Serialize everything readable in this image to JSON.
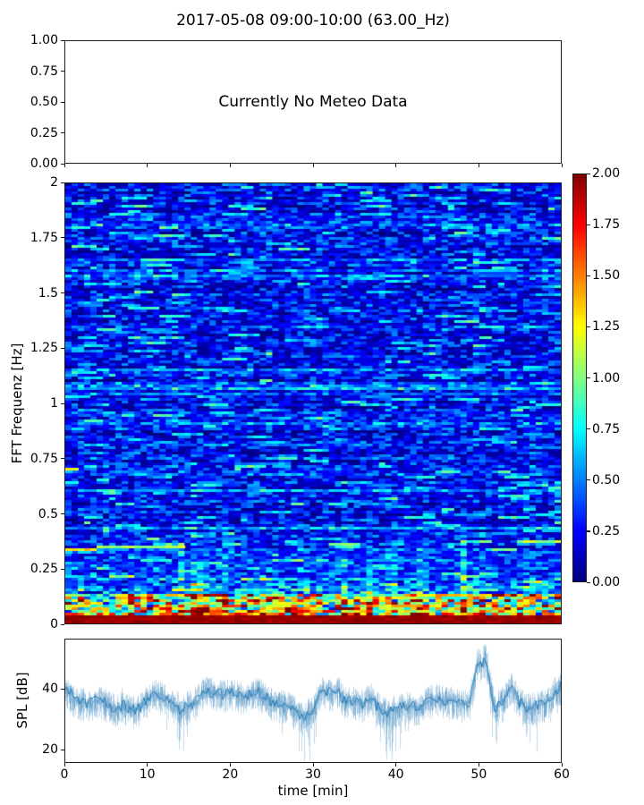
{
  "figure": {
    "title": "2017-05-08 09:00-10:00 (63.00_Hz)",
    "background": "#ffffff",
    "spine_color": "#1a1a1a"
  },
  "chart_data": [
    {
      "type": "empty",
      "panel": "meteo",
      "annotation": "Currently No Meteo Data",
      "ylim": [
        0,
        1
      ],
      "yticks": {
        "values": [
          1.0,
          0.75,
          0.5,
          0.25,
          0.0
        ],
        "labels": [
          "1.00",
          "0.75",
          "0.50",
          "0.25",
          "0.00"
        ]
      },
      "xlim": [
        0,
        60
      ],
      "xticks": {
        "values": [
          0,
          10,
          20,
          30,
          40,
          50,
          60
        ],
        "labels": []
      },
      "grid": false
    },
    {
      "type": "heatmap",
      "panel": "fft-spectrogram",
      "ylabel": "FFT Frequenz [Hz]",
      "xlim": [
        0,
        60
      ],
      "ylim": [
        0,
        2
      ],
      "yticks": {
        "values": [
          2,
          1.75,
          1.5,
          1.25,
          1,
          0.75,
          0.5,
          0.25,
          0
        ],
        "labels": [
          "2",
          "1.75",
          "1.5",
          "1.25",
          "1",
          "0.75",
          "0.5",
          "0.25",
          "0"
        ]
      },
      "colormap": "jet",
      "clim": [
        0,
        2
      ],
      "colorbar": {
        "ticks": {
          "values": [
            2.0,
            1.75,
            1.5,
            1.25,
            1.0,
            0.75,
            0.5,
            0.25,
            0.0
          ],
          "labels": [
            "2.00",
            "1.75",
            "1.50",
            "1.25",
            "1.00",
            "0.75",
            "0.50",
            "0.25",
            "0.00"
          ]
        }
      },
      "synthesis": {
        "seed": 42,
        "rows": 164,
        "cols": 79,
        "base_level": 0.18,
        "streak_probability": 0.055,
        "row_glow_probability": 0.12,
        "column_hot_probability": 0.15,
        "low_freq_hot_band_hz": 0.5,
        "very_hot_band_hz": 0.13,
        "bottom_line_hz": 0.03,
        "bottom_line_level": 1.9,
        "hot_streaks": [
          {
            "t0": 0,
            "t1": 4,
            "f": 0.33,
            "level": 1.25
          },
          {
            "t0": 4,
            "t1": 14,
            "f": 0.345,
            "level": 1.05
          },
          {
            "t0": 0,
            "t1": 1.5,
            "f": 0.7,
            "level": 1.2
          },
          {
            "t0": 0,
            "t1": 2,
            "f": 1.03,
            "level": 0.75
          },
          {
            "t0": 0,
            "t1": 1,
            "f": 0.64,
            "level": 0.85
          },
          {
            "t0": 19,
            "t1": 22,
            "f": 1.87,
            "level": 0.7
          },
          {
            "t0": 50,
            "t1": 54,
            "f": 1.61,
            "level": 0.7
          },
          {
            "t0": 55,
            "t1": 60,
            "f": 0.37,
            "level": 1.1
          },
          {
            "t0": 44,
            "t1": 48,
            "f": 0.12,
            "level": 1.4
          }
        ]
      }
    },
    {
      "type": "line",
      "panel": "spl-timeseries",
      "xlabel": "time [min]",
      "ylabel": "SPL [dB]",
      "color": "#1f77b4",
      "xlim": [
        0,
        60
      ],
      "ylim": [
        15.6,
        56.5
      ],
      "yticks": {
        "values": [
          40,
          20
        ],
        "labels": [
          "40",
          "20"
        ]
      },
      "xticks": {
        "values": [
          0,
          10,
          20,
          30,
          40,
          50,
          60
        ],
        "labels": [
          "0",
          "10",
          "20",
          "30",
          "40",
          "50",
          "60"
        ]
      },
      "x_start_min": 0,
      "x_step_min": 1,
      "mean_db": [
        40,
        37,
        35.5,
        35,
        36.5,
        35,
        33.5,
        34.5,
        33,
        33.5,
        37,
        38.5,
        37,
        35,
        33,
        35,
        36,
        40,
        38.5,
        38,
        39,
        38,
        37,
        39.5,
        38,
        35.5,
        35,
        34,
        32.5,
        31,
        33,
        40,
        38.5,
        39.5,
        36,
        36,
        35,
        37.5,
        33.5,
        32,
        33,
        34,
        34,
        34,
        36,
        37,
        36,
        36,
        35,
        35.5,
        48,
        49,
        34,
        36,
        41,
        36,
        33.5,
        34,
        35,
        37.5,
        41
      ],
      "noise_db": {
        "up": 5,
        "down": 6.5
      },
      "downspike_zones": [
        [
          13.4,
          14.6
        ],
        [
          28.3,
          30.6
        ],
        [
          38,
          41.5
        ],
        [
          51.4,
          52.6
        ],
        [
          55.8,
          57.6
        ]
      ],
      "seed": 7
    }
  ]
}
